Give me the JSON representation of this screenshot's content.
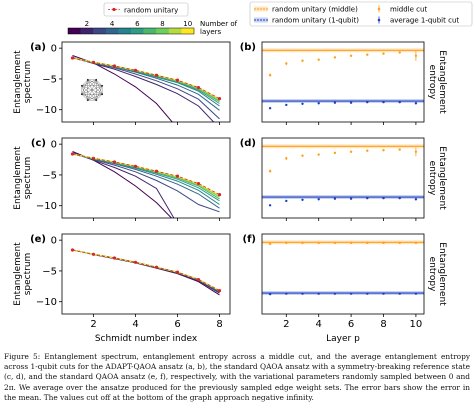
{
  "caption": "Figure 5: Entanglement spectrum, entanglement entropy across a middle cut, and the average entanglement entropy across 1-qubit cuts for the ADAPT-QAOA ansatz (a, b), the standard QAOA ansatz with a symmetry-breaking reference state (c, d), and the standard QAOA ansatz (e, f), respectively, with the variational parameters randomly sampled between 0 and 2π. We average over the ansatze produced for the previously sampled edge weight sets. The error bars show the error in the mean. The values cut off at the bottom of the graph approach negative infinity.",
  "colorbar": {
    "title": "Number of layers",
    "ticks": [
      "2",
      "4",
      "6",
      "8",
      "10"
    ]
  },
  "legend_left": {
    "label": "random unitary"
  },
  "legend_right": {
    "items": [
      "random unitary (middle)",
      "random unitary (1-qubit)",
      "middle cut",
      "average 1-qubit cut"
    ]
  },
  "colors": {
    "random_unitary": "#d62728",
    "middle": "#ff9f1c",
    "middle_band": "#fde6c2",
    "avg": "#1f3fbf",
    "avg_band": "#c9d3f2"
  },
  "chart_data": [
    {
      "panel": "(a)",
      "type": "line",
      "xlabel": "",
      "ylabel": "Entanglement spectrum",
      "xlim": [
        0.5,
        8.5
      ],
      "ylim": [
        -12,
        1
      ],
      "yticks": [
        0,
        -5,
        -10
      ],
      "xticks": [
        2,
        4,
        6,
        8
      ],
      "random_unitary": {
        "x": [
          1,
          2,
          3,
          4,
          5,
          6,
          7,
          8
        ],
        "y": [
          -1.6,
          -2.3,
          -2.9,
          -3.6,
          -4.4,
          -5.2,
          -6.4,
          -8.2
        ]
      },
      "series": [
        {
          "layers": 1,
          "x": [
            1,
            2,
            3,
            4,
            5,
            6,
            7,
            8
          ],
          "y": [
            -1.2,
            -2.4,
            -4.2,
            -6.3,
            -9.0,
            -13,
            -13,
            -13
          ]
        },
        {
          "layers": 2,
          "x": [
            1,
            2,
            3,
            4,
            5,
            6,
            7,
            8
          ],
          "y": [
            -1.5,
            -2.5,
            -3.4,
            -4.6,
            -5.9,
            -7.4,
            -9.4,
            -13
          ]
        },
        {
          "layers": 3,
          "x": [
            1,
            2,
            3,
            4,
            5,
            6,
            7,
            8
          ],
          "y": [
            -1.6,
            -2.4,
            -3.2,
            -4.2,
            -5.3,
            -6.6,
            -8.3,
            -11.5
          ]
        },
        {
          "layers": 4,
          "x": [
            1,
            2,
            3,
            4,
            5,
            6,
            7,
            8
          ],
          "y": [
            -1.6,
            -2.4,
            -3.1,
            -3.9,
            -4.9,
            -6.0,
            -7.5,
            -10.1
          ]
        },
        {
          "layers": 5,
          "x": [
            1,
            2,
            3,
            4,
            5,
            6,
            7,
            8
          ],
          "y": [
            -1.6,
            -2.3,
            -3.0,
            -3.8,
            -4.7,
            -5.6,
            -7.0,
            -9.4
          ]
        },
        {
          "layers": 6,
          "x": [
            1,
            2,
            3,
            4,
            5,
            6,
            7,
            8
          ],
          "y": [
            -1.6,
            -2.3,
            -3.0,
            -3.7,
            -4.6,
            -5.5,
            -6.8,
            -9.0
          ]
        },
        {
          "layers": 7,
          "x": [
            1,
            2,
            3,
            4,
            5,
            6,
            7,
            8
          ],
          "y": [
            -1.6,
            -2.3,
            -2.95,
            -3.65,
            -4.5,
            -5.4,
            -6.6,
            -8.7
          ]
        },
        {
          "layers": 8,
          "x": [
            1,
            2,
            3,
            4,
            5,
            6,
            7,
            8
          ],
          "y": [
            -1.6,
            -2.3,
            -2.9,
            -3.6,
            -4.45,
            -5.3,
            -6.5,
            -8.5
          ]
        },
        {
          "layers": 9,
          "x": [
            1,
            2,
            3,
            4,
            5,
            6,
            7,
            8
          ],
          "y": [
            -1.6,
            -2.3,
            -2.9,
            -3.6,
            -4.4,
            -5.25,
            -6.45,
            -8.35
          ]
        },
        {
          "layers": 10,
          "x": [
            1,
            2,
            3,
            4,
            5,
            6,
            7,
            8
          ],
          "y": [
            -1.6,
            -2.3,
            -2.9,
            -3.6,
            -4.4,
            -5.2,
            -6.4,
            -8.25
          ]
        }
      ]
    },
    {
      "panel": "(b)",
      "type": "scatter",
      "xlabel": "",
      "ylabel": "Entanglement entropy",
      "xlim": [
        0.5,
        10.5
      ],
      "ylim": [
        0.3,
        1.75
      ],
      "xticks": [
        2,
        4,
        6,
        8,
        10
      ],
      "ref_middle": 1.6,
      "ref_avg": 0.68,
      "middle": {
        "x": [
          1,
          2,
          3,
          4,
          5,
          6,
          7,
          8,
          9,
          10
        ],
        "y": [
          1.15,
          1.36,
          1.41,
          1.43,
          1.47,
          1.5,
          1.52,
          1.54,
          1.56,
          1.5
        ],
        "err": [
          0.03,
          0.03,
          0.02,
          0.02,
          0.02,
          0.02,
          0.02,
          0.02,
          0.02,
          0.09
        ]
      },
      "avg": {
        "x": [
          1,
          2,
          3,
          4,
          5,
          6,
          7,
          8,
          9,
          10
        ],
        "y": [
          0.55,
          0.61,
          0.63,
          0.64,
          0.65,
          0.65,
          0.66,
          0.66,
          0.66,
          0.64
        ],
        "err": [
          0.01,
          0.01,
          0.01,
          0.01,
          0.01,
          0.01,
          0.01,
          0.01,
          0.01,
          0.02
        ]
      }
    },
    {
      "panel": "(c)",
      "type": "line",
      "xlabel": "",
      "ylabel": "Entanglement spectrum",
      "xlim": [
        0.5,
        8.5
      ],
      "ylim": [
        -12,
        1
      ],
      "yticks": [
        0,
        -5,
        -10
      ],
      "xticks": [
        2,
        4,
        6,
        8
      ],
      "random_unitary": {
        "x": [
          1,
          2,
          3,
          4,
          5,
          6,
          7,
          8
        ],
        "y": [
          -1.6,
          -2.3,
          -2.9,
          -3.6,
          -4.4,
          -5.2,
          -6.4,
          -8.2
        ]
      },
      "series": [
        {
          "layers": 1,
          "x": [
            1,
            2,
            3,
            4,
            5,
            6,
            7,
            8
          ],
          "y": [
            -1.2,
            -2.6,
            -4.5,
            -6.8,
            -9.5,
            -13,
            -13,
            -13
          ]
        },
        {
          "layers": 2,
          "x": [
            1,
            2,
            3,
            4,
            5,
            6,
            7,
            8
          ],
          "y": [
            -1.4,
            -2.6,
            -3.8,
            -5.2,
            -7.2,
            -13,
            -13,
            -13
          ]
        },
        {
          "layers": 3,
          "x": [
            1,
            2,
            3,
            4,
            5,
            6,
            7,
            8
          ],
          "y": [
            -1.5,
            -2.5,
            -3.4,
            -4.5,
            -5.9,
            -7.6,
            -9.8,
            -11.0
          ]
        },
        {
          "layers": 4,
          "x": [
            1,
            2,
            3,
            4,
            5,
            6,
            7,
            8
          ],
          "y": [
            -1.6,
            -2.4,
            -3.2,
            -4.1,
            -5.2,
            -6.5,
            -8.1,
            -10.4
          ]
        },
        {
          "layers": 5,
          "x": [
            1,
            2,
            3,
            4,
            5,
            6,
            7,
            8
          ],
          "y": [
            -1.6,
            -2.4,
            -3.1,
            -3.9,
            -4.9,
            -6.0,
            -7.5,
            -9.8
          ]
        },
        {
          "layers": 6,
          "x": [
            1,
            2,
            3,
            4,
            5,
            6,
            7,
            8
          ],
          "y": [
            -1.6,
            -2.35,
            -3.0,
            -3.8,
            -4.7,
            -5.7,
            -7.1,
            -9.2
          ]
        },
        {
          "layers": 7,
          "x": [
            1,
            2,
            3,
            4,
            5,
            6,
            7,
            8
          ],
          "y": [
            -1.6,
            -2.3,
            -3.0,
            -3.7,
            -4.55,
            -5.5,
            -6.8,
            -8.9
          ]
        },
        {
          "layers": 8,
          "x": [
            1,
            2,
            3,
            4,
            5,
            6,
            7,
            8
          ],
          "y": [
            -1.6,
            -2.3,
            -2.95,
            -3.65,
            -4.5,
            -5.4,
            -6.6,
            -8.6
          ]
        },
        {
          "layers": 9,
          "x": [
            1,
            2,
            3,
            4,
            5,
            6,
            7,
            8
          ],
          "y": [
            -1.6,
            -2.3,
            -2.9,
            -3.6,
            -4.45,
            -5.3,
            -6.5,
            -8.4
          ]
        },
        {
          "layers": 10,
          "x": [
            1,
            2,
            3,
            4,
            5,
            6,
            7,
            8
          ],
          "y": [
            -1.6,
            -2.3,
            -2.9,
            -3.6,
            -4.4,
            -5.25,
            -6.45,
            -8.3
          ]
        }
      ]
    },
    {
      "panel": "(d)",
      "type": "scatter",
      "xlabel": "",
      "ylabel": "Entanglement entropy",
      "xlim": [
        0.5,
        10.5
      ],
      "ylim": [
        0.3,
        1.75
      ],
      "xticks": [
        2,
        4,
        6,
        8,
        10
      ],
      "ref_middle": 1.6,
      "ref_avg": 0.68,
      "middle": {
        "x": [
          1,
          2,
          3,
          4,
          5,
          6,
          7,
          8,
          9,
          10
        ],
        "y": [
          1.15,
          1.38,
          1.43,
          1.45,
          1.48,
          1.5,
          1.52,
          1.53,
          1.54,
          1.5
        ],
        "err": [
          0.03,
          0.03,
          0.02,
          0.02,
          0.02,
          0.02,
          0.02,
          0.02,
          0.02,
          0.08
        ]
      },
      "avg": {
        "x": [
          1,
          2,
          3,
          4,
          5,
          6,
          7,
          8,
          9,
          10
        ],
        "y": [
          0.53,
          0.61,
          0.63,
          0.64,
          0.65,
          0.65,
          0.66,
          0.66,
          0.66,
          0.64
        ],
        "err": [
          0.01,
          0.01,
          0.01,
          0.01,
          0.01,
          0.01,
          0.01,
          0.01,
          0.01,
          0.02
        ]
      }
    },
    {
      "panel": "(e)",
      "type": "line",
      "xlabel": "Schmidt number index",
      "ylabel": "Entanglement spectrum",
      "xlim": [
        0.5,
        8.5
      ],
      "ylim": [
        -12,
        1
      ],
      "yticks": [
        0,
        -5,
        -10
      ],
      "xticks": [
        2,
        4,
        6,
        8
      ],
      "random_unitary": {
        "x": [
          1,
          2,
          3,
          4,
          5,
          6,
          7,
          8
        ],
        "y": [
          -1.6,
          -2.3,
          -2.9,
          -3.6,
          -4.4,
          -5.2,
          -6.4,
          -8.2
        ]
      },
      "series": [
        {
          "layers": 1,
          "x": [
            1,
            2,
            3,
            4,
            5,
            6,
            7,
            8
          ],
          "y": [
            -1.55,
            -2.35,
            -3.0,
            -3.7,
            -4.55,
            -5.45,
            -6.75,
            -8.9
          ]
        },
        {
          "layers": 2,
          "x": [
            1,
            2,
            3,
            4,
            5,
            6,
            7,
            8
          ],
          "y": [
            -1.6,
            -2.3,
            -2.95,
            -3.65,
            -4.5,
            -5.35,
            -6.6,
            -8.6
          ]
        },
        {
          "layers": 3,
          "x": [
            1,
            2,
            3,
            4,
            5,
            6,
            7,
            8
          ],
          "y": [
            -1.6,
            -2.3,
            -2.9,
            -3.6,
            -4.45,
            -5.3,
            -6.5,
            -8.45
          ]
        },
        {
          "layers": 4,
          "x": [
            1,
            2,
            3,
            4,
            5,
            6,
            7,
            8
          ],
          "y": [
            -1.6,
            -2.3,
            -2.9,
            -3.6,
            -4.4,
            -5.25,
            -6.45,
            -8.35
          ]
        },
        {
          "layers": 5,
          "x": [
            1,
            2,
            3,
            4,
            5,
            6,
            7,
            8
          ],
          "y": [
            -1.6,
            -2.3,
            -2.9,
            -3.6,
            -4.4,
            -5.2,
            -6.4,
            -8.3
          ]
        },
        {
          "layers": 6,
          "x": [
            1,
            2,
            3,
            4,
            5,
            6,
            7,
            8
          ],
          "y": [
            -1.6,
            -2.3,
            -2.9,
            -3.6,
            -4.4,
            -5.2,
            -6.4,
            -8.25
          ]
        },
        {
          "layers": 7,
          "x": [
            1,
            2,
            3,
            4,
            5,
            6,
            7,
            8
          ],
          "y": [
            -1.6,
            -2.3,
            -2.9,
            -3.6,
            -4.4,
            -5.2,
            -6.4,
            -8.22
          ]
        },
        {
          "layers": 8,
          "x": [
            1,
            2,
            3,
            4,
            5,
            6,
            7,
            8
          ],
          "y": [
            -1.6,
            -2.3,
            -2.9,
            -3.6,
            -4.4,
            -5.2,
            -6.4,
            -8.2
          ]
        },
        {
          "layers": 9,
          "x": [
            1,
            2,
            3,
            4,
            5,
            6,
            7,
            8
          ],
          "y": [
            -1.6,
            -2.3,
            -2.9,
            -3.6,
            -4.4,
            -5.2,
            -6.4,
            -8.2
          ]
        },
        {
          "layers": 10,
          "x": [
            1,
            2,
            3,
            4,
            5,
            6,
            7,
            8
          ],
          "y": [
            -1.6,
            -2.3,
            -2.9,
            -3.6,
            -4.4,
            -5.2,
            -6.4,
            -8.2
          ]
        }
      ]
    },
    {
      "panel": "(f)",
      "type": "scatter",
      "xlabel": "Layer p",
      "ylabel": "Entanglement entropy",
      "xlim": [
        0.5,
        10.5
      ],
      "ylim": [
        0.3,
        1.75
      ],
      "xticks": [
        2,
        4,
        6,
        8,
        10
      ],
      "ref_middle": 1.6,
      "ref_avg": 0.68,
      "middle": {
        "x": [
          1,
          2,
          3,
          4,
          5,
          6,
          7,
          8,
          9,
          10
        ],
        "y": [
          1.57,
          1.59,
          1.59,
          1.59,
          1.59,
          1.59,
          1.59,
          1.59,
          1.59,
          1.59
        ],
        "err": [
          0.01,
          0.01,
          0.01,
          0.01,
          0.01,
          0.01,
          0.01,
          0.01,
          0.01,
          0.01
        ]
      },
      "avg": {
        "x": [
          1,
          2,
          3,
          4,
          5,
          6,
          7,
          8,
          9,
          10
        ],
        "y": [
          0.66,
          0.67,
          0.67,
          0.67,
          0.67,
          0.67,
          0.67,
          0.67,
          0.67,
          0.67
        ],
        "err": [
          0.005,
          0.005,
          0.005,
          0.005,
          0.005,
          0.005,
          0.005,
          0.005,
          0.005,
          0.005
        ]
      }
    }
  ]
}
